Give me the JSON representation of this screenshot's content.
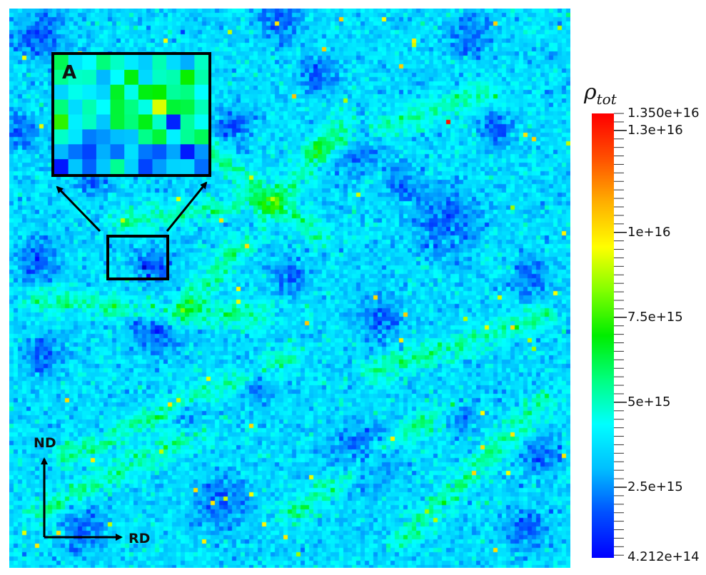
{
  "chart_data": {
    "type": "heatmap",
    "title": "",
    "field_label": "ρ_tot",
    "field_symbol": "ρ",
    "field_subscript": "tot",
    "colormap": [
      "#0000ff",
      "#0050ff",
      "#00bfff",
      "#00ffff",
      "#00ff80",
      "#00ee00",
      "#80ff00",
      "#ffff00",
      "#ffb000",
      "#ff5000",
      "#ff0000"
    ],
    "colorbar": {
      "min": 421200000000000.0,
      "max": 1.35e+16,
      "min_label": "4.212e+14",
      "max_label": "1.350e+16",
      "ticks": [
        {
          "value": 2500000000000000.0,
          "label": "2.5e+15"
        },
        {
          "value": 5000000000000000.0,
          "label": "5e+15"
        },
        {
          "value": 7500000000000000.0,
          "label": "7.5e+15"
        },
        {
          "value": 1e+16,
          "label": "1e+16"
        },
        {
          "value": 1.3e+16,
          "label": "1.3e+16"
        }
      ]
    },
    "background_value": 3600000000000000.0,
    "dark_regions_value": 2300000000000000.0,
    "hot_spots": [
      {
        "value": 1.32e+16
      },
      {
        "value": 1.05e+16
      }
    ],
    "inset_label": "A",
    "axes": {
      "vertical": "ND",
      "horizontal": "RD"
    }
  }
}
